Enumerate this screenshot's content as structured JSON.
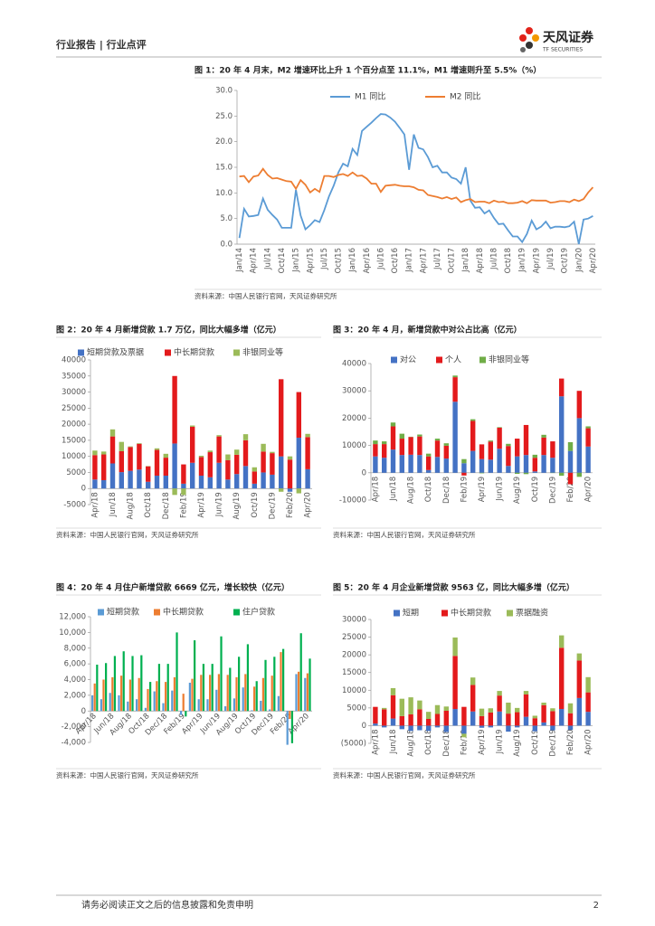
{
  "header": {
    "left": "行业报告 | 行业点评",
    "logo": "天风证券",
    "logo_sub": "TF SECURITIES"
  },
  "footer": {
    "disclaimer": "请务必阅读正文之后的信息披露和免责申明",
    "page": 2
  },
  "chart_data": [
    {
      "type": "line",
      "title": "图 1：20 年 4 月末，M2 增速环比上升 1 个百分点至 11.1%，M1 增速则升至 5.5%（%）",
      "source": "资料来源：中国人民银行官网，天风证券研究所",
      "legend": "top",
      "categories": [
        "Jan/14",
        null,
        null,
        "Apr/14",
        null,
        null,
        "Jul/14",
        null,
        null,
        "Oct/14",
        null,
        null,
        "Jan/15",
        null,
        null,
        "Apr/15",
        null,
        null,
        "Jul/15",
        null,
        null,
        "Oct/15",
        null,
        null,
        "Jan/16",
        null,
        null,
        "Apr/16",
        null,
        null,
        "Jul/16",
        null,
        null,
        "Oct/16",
        null,
        null,
        "Jan/17",
        null,
        null,
        "Apr/17",
        null,
        null,
        "Jul/17",
        null,
        null,
        "Oct/17",
        null,
        null,
        "Jan/18",
        null,
        null,
        "Apr/18",
        null,
        null,
        "Jul/18",
        null,
        null,
        "Oct/18",
        null,
        null,
        "Jan/19",
        null,
        null,
        "Apr/19",
        null,
        null,
        "Jul/19",
        null,
        null,
        "Oct/19",
        null,
        null,
        "Jan/20",
        null,
        null,
        "Apr/20"
      ],
      "series": [
        {
          "name": "M1 同比",
          "color": "#5b9bd5",
          "values": [
            1.2,
            6.9,
            5.4,
            5.5,
            5.7,
            8.9,
            6.7,
            5.7,
            4.8,
            3.2,
            3.2,
            3.2,
            10.6,
            5.6,
            2.9,
            3.7,
            4.7,
            4.3,
            6.6,
            9.3,
            11.4,
            14.0,
            15.7,
            15.2,
            18.6,
            17.4,
            22.1,
            22.9,
            23.7,
            24.6,
            25.4,
            25.3,
            24.7,
            23.9,
            22.7,
            21.4,
            14.5,
            21.4,
            18.8,
            18.5,
            17.0,
            15.0,
            15.3,
            14.0,
            14.0,
            13.0,
            12.7,
            11.8,
            15.0,
            8.5,
            7.1,
            7.2,
            6.0,
            6.6,
            5.1,
            3.9,
            4.0,
            2.7,
            1.5,
            1.5,
            0.4,
            2.0,
            4.6,
            2.9,
            3.4,
            4.4,
            3.1,
            3.4,
            3.4,
            3.3,
            3.5,
            4.4,
            0.0,
            4.8,
            5.0,
            5.5
          ]
        },
        {
          "name": "M2 同比",
          "color": "#ed7d31",
          "values": [
            13.2,
            13.3,
            12.1,
            13.2,
            13.4,
            14.7,
            13.5,
            12.8,
            12.9,
            12.6,
            12.3,
            12.2,
            10.8,
            12.5,
            11.6,
            10.1,
            10.8,
            10.2,
            13.3,
            13.3,
            13.1,
            13.5,
            13.7,
            13.3,
            14.0,
            13.3,
            13.4,
            12.8,
            11.8,
            11.8,
            10.2,
            11.4,
            11.5,
            11.6,
            11.4,
            11.3,
            11.3,
            11.1,
            10.6,
            10.5,
            9.6,
            9.4,
            9.2,
            8.9,
            9.2,
            8.8,
            9.1,
            8.2,
            8.6,
            8.8,
            8.2,
            8.3,
            8.3,
            8.0,
            8.5,
            8.2,
            8.3,
            8.0,
            8.0,
            8.1,
            8.4,
            8.0,
            8.6,
            8.5,
            8.5,
            8.5,
            8.1,
            8.2,
            8.4,
            8.4,
            8.2,
            8.7,
            8.4,
            8.8,
            10.1,
            11.1
          ]
        }
      ],
      "ylim": [
        0,
        30
      ],
      "yticks": [
        {
          "value": 0,
          "label": "0.0"
        },
        {
          "value": 5,
          "label": "5.0"
        },
        {
          "value": 10,
          "label": "10.0"
        },
        {
          "value": 15,
          "label": "15.0"
        },
        {
          "value": 20,
          "label": "20.0"
        },
        {
          "value": 25,
          "label": "25.0"
        },
        {
          "value": 30,
          "label": "30.0"
        }
      ]
    },
    {
      "type": "bar",
      "stacked": true,
      "title": "图 2：20 年 4 月新增贷款 1.7 万亿，同比大幅多增（亿元）",
      "source": "资料来源：中国人民银行官网，天风证券研究所",
      "legend": "top",
      "categories": [
        "Apr/18",
        null,
        "Jun/18",
        null,
        "Aug/18",
        null,
        "Oct/18",
        null,
        "Dec/18",
        null,
        "Feb/19",
        null,
        "Apr/19",
        null,
        "Jun/19",
        null,
        "Aug/19",
        null,
        "Oct/19",
        null,
        "Dec/19",
        null,
        "Feb/20",
        null,
        "Apr/20"
      ],
      "series": [
        {
          "name": "短期贷款及票据",
          "color": "#4472c4",
          "values": [
            2800,
            2600,
            7800,
            5100,
            5500,
            5900,
            2100,
            4000,
            4000,
            14000,
            1500,
            8000,
            4000,
            3500,
            8000,
            2800,
            4500,
            7000,
            1500,
            5000,
            4300,
            10000,
            -1000,
            15800,
            6000
          ]
        },
        {
          "name": "中长期贷款",
          "color": "#e31a1c",
          "values": [
            7600,
            8000,
            8400,
            6500,
            7400,
            8000,
            4800,
            8000,
            5600,
            21000,
            6000,
            11200,
            5800,
            7800,
            8200,
            6000,
            6000,
            8000,
            3800,
            6500,
            6700,
            24000,
            9000,
            14200,
            10000
          ]
        },
        {
          "name": "非银同业等",
          "color": "#9bbb59",
          "values": [
            1400,
            900,
            2200,
            2900,
            200,
            200,
            100,
            500,
            1200,
            -2000,
            -2000,
            400,
            400,
            500,
            400,
            1800,
            1600,
            1900,
            1300,
            2400,
            400,
            -1000,
            1000,
            -1500,
            1000
          ]
        }
      ],
      "ylim": [
        -5000,
        40000
      ],
      "yticks": [
        -5000,
        0,
        5000,
        10000,
        15000,
        20000,
        25000,
        30000,
        35000,
        40000
      ]
    },
    {
      "type": "bar",
      "stacked": true,
      "title": "图 3：20 年 4 月，新增贷款中对公占比高（亿元）",
      "source": "资料来源：中国人民银行官网，天风证券研究所",
      "legend": "top",
      "categories": [
        "Apr/18",
        null,
        "Jun/18",
        null,
        "Aug/18",
        null,
        "Oct/18",
        null,
        "Dec/18",
        null,
        "Feb/19",
        null,
        "Apr/19",
        null,
        "Jun/19",
        null,
        "Aug/19",
        null,
        "Oct/19",
        null,
        "Dec/19",
        null,
        "Feb/20",
        null,
        "Apr/20"
      ],
      "series": [
        {
          "name": "对公",
          "color": "#4472c4",
          "values": [
            6000,
            5500,
            8500,
            6500,
            6600,
            6500,
            1000,
            5800,
            5200,
            26000,
            3500,
            8000,
            5000,
            4800,
            8800,
            2500,
            6000,
            6500,
            500,
            6500,
            5500,
            28000,
            8000,
            20000,
            9600
          ]
        },
        {
          "name": "个人",
          "color": "#e31a1c",
          "values": [
            4500,
            5000,
            8500,
            6000,
            6500,
            6800,
            5000,
            6000,
            4700,
            9000,
            -1000,
            11000,
            5400,
            6600,
            7700,
            7300,
            6500,
            11000,
            5000,
            6400,
            6000,
            6500,
            -4200,
            10000,
            6700
          ]
        },
        {
          "name": "非银同业等",
          "color": "#70ad47",
          "values": [
            1300,
            1000,
            1400,
            1800,
            100,
            700,
            1000,
            700,
            900,
            600,
            1500,
            600,
            -200,
            400,
            200,
            800,
            -400,
            -500,
            1100,
            1000,
            -100,
            -1100,
            3200,
            -1500,
            700
          ]
        }
      ],
      "ylim": [
        -10000,
        40000
      ],
      "yticks": [
        -10000,
        0,
        10000,
        20000,
        30000,
        40000
      ]
    },
    {
      "type": "bar",
      "stacked": false,
      "title": "图 4：20 年 4 月住户新增贷款 6669 亿元，增长较快（亿元）",
      "source": "资料来源：中国人民银行官网，天风证券研究所",
      "legend": "top",
      "categories": [
        "Apr/18",
        null,
        "Jun/18",
        null,
        "Aug/18",
        null,
        "Oct/18",
        null,
        "Dec/18",
        null,
        "Feb/19",
        null,
        "Apr/19",
        null,
        "Jun/19",
        null,
        "Aug/19",
        null,
        "Oct/19",
        null,
        "Dec/19",
        null,
        "Feb/20",
        null,
        "Apr/20"
      ],
      "series": [
        {
          "name": "短期贷款",
          "color": "#5b9bd5",
          "values": [
            2000,
            1500,
            2300,
            2000,
            1200,
            1500,
            400,
            2500,
            1000,
            2600,
            -500,
            3600,
            1500,
            1500,
            2700,
            600,
            1600,
            3000,
            100,
            1300,
            200,
            1900,
            -4300,
            4700,
            4200
          ]
        },
        {
          "name": "中长期贷款",
          "color": "#ed7d31",
          "values": [
            3500,
            4000,
            4300,
            4500,
            4000,
            4200,
            2800,
            3800,
            3700,
            4300,
            2200,
            4100,
            4600,
            4600,
            4700,
            4600,
            4300,
            4700,
            3100,
            4200,
            4500,
            7500,
            -1000,
            5000,
            4800
          ]
        },
        {
          "name": "住户贷款",
          "color": "#00b050",
          "values": [
            5900,
            6100,
            7000,
            7600,
            7000,
            7100,
            3700,
            6000,
            6000,
            10000,
            -700,
            9000,
            6000,
            6000,
            9500,
            5500,
            6900,
            8500,
            3800,
            6500,
            6900,
            7900,
            -4100,
            9900,
            6669
          ]
        }
      ],
      "ylim": [
        -4000,
        12000
      ],
      "yticks": [
        {
          "value": -4000,
          "label": "-4,000"
        },
        {
          "value": -2000,
          "label": "-2,000"
        },
        0,
        {
          "value": 2000,
          "label": "2,000"
        },
        {
          "value": 4000,
          "label": "4,000"
        },
        {
          "value": 6000,
          "label": "6,000"
        },
        {
          "value": 8000,
          "label": "8,000"
        },
        {
          "value": 10000,
          "label": "10,000"
        },
        {
          "value": 12000,
          "label": "12,000"
        }
      ]
    },
    {
      "type": "bar",
      "stacked": true,
      "title": "图 5：20 年 4 月企业新增贷款 9563 亿，同比大幅多增（亿元）",
      "source": "资料来源：中国人民银行官网，天风证券研究所",
      "legend": "top",
      "categories": [
        "Apr/18",
        null,
        "Jun/18",
        null,
        "Aug/18",
        null,
        "Oct/18",
        null,
        "Dec/18",
        null,
        "Feb/19",
        null,
        "Apr/19",
        null,
        "Jun/19",
        null,
        "Aug/19",
        null,
        "Oct/19",
        null,
        "Dec/19",
        null,
        "Feb/20",
        null,
        "Apr/20"
      ],
      "series": [
        {
          "name": "短期",
          "color": "#4472c4",
          "values": [
            600,
            -500,
            2000,
            -1000,
            -1500,
            -1300,
            -1500,
            -500,
            -1800,
            4700,
            -2300,
            4000,
            -600,
            -500,
            4000,
            -1700,
            -500,
            2500,
            -1600,
            900,
            -1300,
            4700,
            -1200,
            7800,
            3900
          ]
        },
        {
          "name": "中长期贷款",
          "color": "#e31a1c",
          "values": [
            4700,
            4600,
            6600,
            2700,
            3200,
            4600,
            1900,
            3300,
            4200,
            15000,
            5300,
            7500,
            2700,
            3700,
            4500,
            3400,
            3800,
            6300,
            2100,
            4900,
            4100,
            17300,
            3500,
            10600,
            5500
          ]
        },
        {
          "name": "票据融资",
          "color": "#9bbb59",
          "values": [
            0,
            400,
            2000,
            4900,
            4800,
            2500,
            2000,
            2500,
            1200,
            5200,
            -1000,
            2100,
            2100,
            1200,
            1300,
            3100,
            1200,
            1000,
            700,
            700,
            800,
            3500,
            2800,
            2000,
            4300
          ]
        }
      ],
      "ylim": [
        -5000,
        30000
      ],
      "yticks": [
        {
          "value": -5000,
          "label": "(5000)"
        },
        0,
        5000,
        10000,
        15000,
        20000,
        25000,
        30000
      ]
    }
  ]
}
